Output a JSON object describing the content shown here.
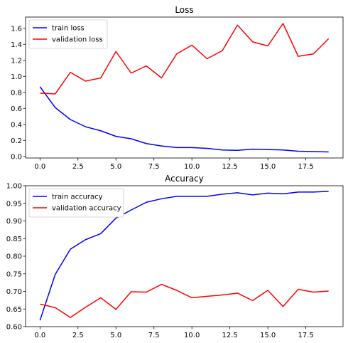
{
  "chart_data": [
    {
      "type": "line",
      "title": "Loss",
      "xlim": [
        -0.95,
        19.95
      ],
      "ylim": [
        -0.02,
        1.74
      ],
      "xticks": [
        0.0,
        2.5,
        5.0,
        7.5,
        10.0,
        12.5,
        15.0,
        17.5
      ],
      "xtick_labels": [
        "0.0",
        "2.5",
        "5.0",
        "7.5",
        "10.0",
        "12.5",
        "15.0",
        "17.5"
      ],
      "yticks": [
        0.0,
        0.2,
        0.4,
        0.6,
        0.8,
        1.0,
        1.2,
        1.4,
        1.6
      ],
      "ytick_labels": [
        "0.0",
        "0.2",
        "0.4",
        "0.6",
        "0.8",
        "1.0",
        "1.2",
        "1.4",
        "1.6"
      ],
      "legend_position": "upper-left",
      "x": [
        0,
        1,
        2,
        3,
        4,
        5,
        6,
        7,
        8,
        9,
        10,
        11,
        12,
        13,
        14,
        15,
        16,
        17,
        18,
        19
      ],
      "series": [
        {
          "name": "train loss",
          "color": "#0000ff",
          "values": [
            0.87,
            0.61,
            0.46,
            0.37,
            0.32,
            0.25,
            0.22,
            0.16,
            0.13,
            0.11,
            0.11,
            0.1,
            0.08,
            0.075,
            0.09,
            0.085,
            0.08,
            0.065,
            0.06,
            0.055
          ]
        },
        {
          "name": "validation loss",
          "color": "#ff0000",
          "values": [
            0.79,
            0.78,
            1.05,
            0.94,
            0.98,
            1.31,
            1.04,
            1.13,
            0.98,
            1.28,
            1.39,
            1.22,
            1.32,
            1.64,
            1.43,
            1.38,
            1.66,
            1.25,
            1.28,
            1.47
          ]
        }
      ]
    },
    {
      "type": "line",
      "title": "Accuracy",
      "xlim": [
        -0.95,
        19.95
      ],
      "ylim": [
        0.6,
        1.0
      ],
      "xticks": [
        0.0,
        2.5,
        5.0,
        7.5,
        10.0,
        12.5,
        15.0,
        17.5
      ],
      "xtick_labels": [
        "0.0",
        "2.5",
        "5.0",
        "7.5",
        "10.0",
        "12.5",
        "15.0",
        "17.5"
      ],
      "yticks": [
        0.6,
        0.65,
        0.7,
        0.75,
        0.8,
        0.85,
        0.9,
        0.95,
        1.0
      ],
      "ytick_labels": [
        "0.60",
        "0.65",
        "0.70",
        "0.75",
        "0.80",
        "0.85",
        "0.90",
        "0.95",
        "1.00"
      ],
      "legend_position": "upper-left",
      "x": [
        0,
        1,
        2,
        3,
        4,
        5,
        6,
        7,
        8,
        9,
        10,
        11,
        12,
        13,
        14,
        15,
        16,
        17,
        18,
        19
      ],
      "series": [
        {
          "name": "train accuracy",
          "color": "#0000ff",
          "values": [
            0.618,
            0.748,
            0.82,
            0.847,
            0.864,
            0.908,
            0.931,
            0.953,
            0.963,
            0.97,
            0.97,
            0.97,
            0.976,
            0.98,
            0.974,
            0.979,
            0.977,
            0.982,
            0.982,
            0.984
          ]
        },
        {
          "name": "validation accuracy",
          "color": "#ff0000",
          "values": [
            0.664,
            0.654,
            0.626,
            0.655,
            0.682,
            0.649,
            0.699,
            0.698,
            0.72,
            0.703,
            0.682,
            0.686,
            0.69,
            0.695,
            0.674,
            0.703,
            0.657,
            0.706,
            0.698,
            0.701
          ]
        }
      ]
    }
  ]
}
